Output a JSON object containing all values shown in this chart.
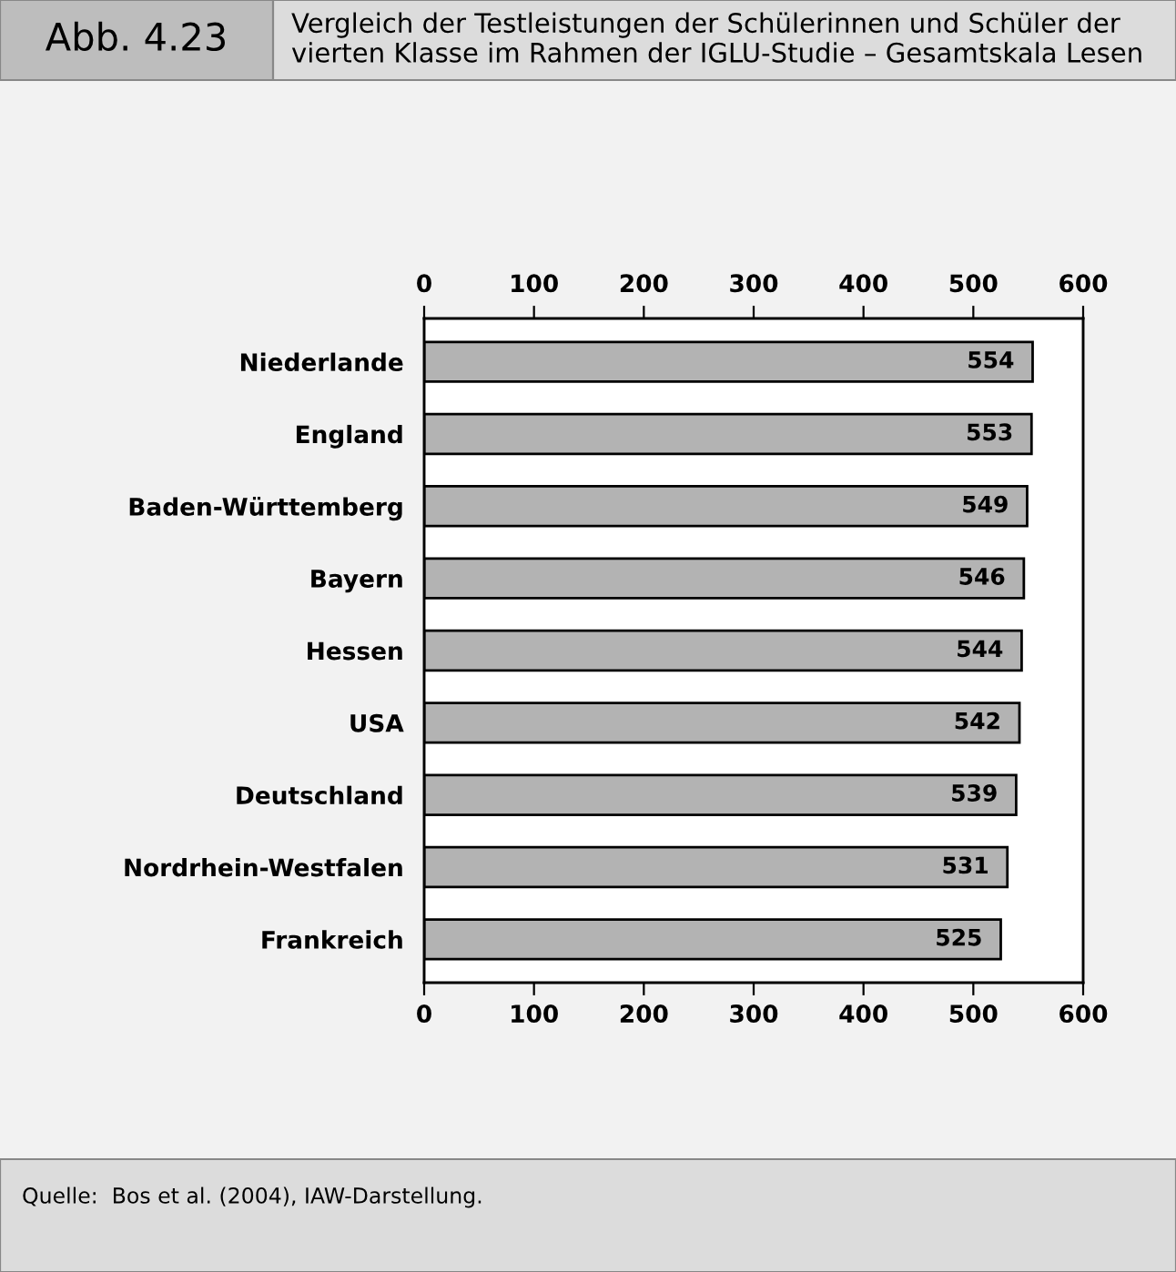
{
  "chart_data": {
    "type": "bar",
    "orientation": "horizontal",
    "title": "Vergleich der Testleistungen der Schülerinnen und Schüler der\nvierten Klasse im Rahmen der IGLU-Studie – Gesamtskala Lesen",
    "annotations": [
      "Abb. 4.23",
      "Quelle:  Bos et al. (2004), IAW-Darstellung."
    ],
    "categories": [
      "Niederlande",
      "England",
      "Baden-Württemberg",
      "Bayern",
      "Hessen",
      "USA",
      "Deutschland",
      "Nordrhein-Westfalen",
      "Frankreich"
    ],
    "values": [
      554,
      553,
      549,
      546,
      544,
      542,
      539,
      531,
      525
    ],
    "color": "#b3b3b3",
    "data_labels": true,
    "xlim": [
      0,
      600
    ],
    "xticks": [
      0,
      100,
      200,
      300,
      400,
      500,
      600
    ],
    "x2lim": [
      0,
      600
    ],
    "x2ticks": [
      0,
      100,
      200,
      300,
      400,
      500,
      600
    ],
    "grid": false
  }
}
